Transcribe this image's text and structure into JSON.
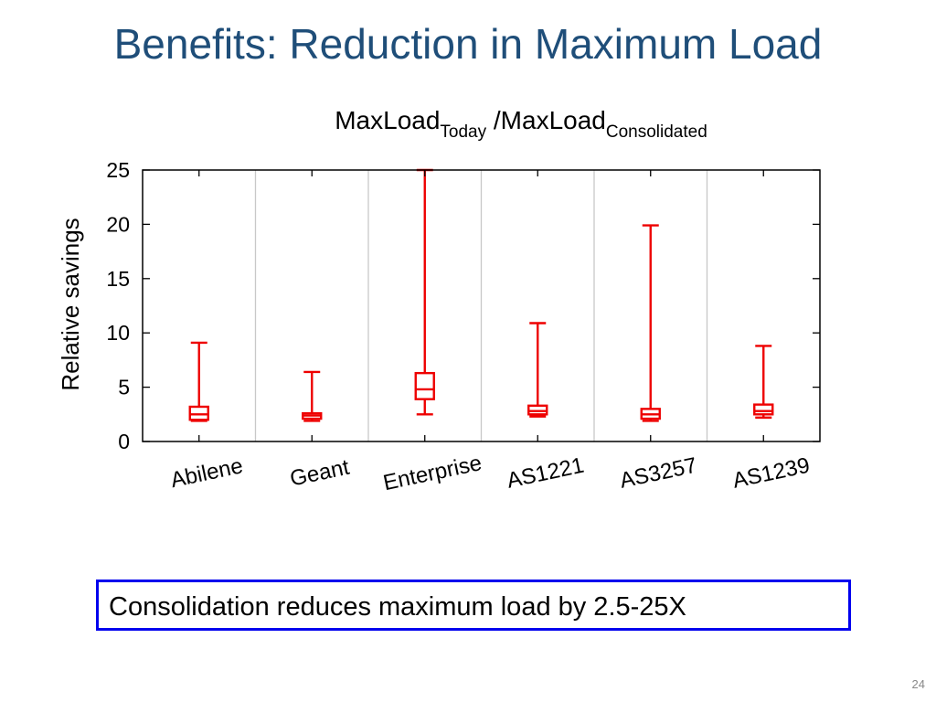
{
  "slide": {
    "title": "Benefits: Reduction in Maximum Load",
    "callout": "Consolidation reduces maximum load by 2.5-25X",
    "page_number": "24"
  },
  "chart_data": {
    "type": "box",
    "title": {
      "main1": "MaxLoad",
      "sub1": "Today",
      "main2": " /MaxLoad",
      "sub2": "Consolidated"
    },
    "ylabel": "Relative savings",
    "xlabel": "",
    "ylim": [
      0,
      25
    ],
    "yticks": [
      "0",
      "5",
      "10",
      "15",
      "20",
      "25"
    ],
    "categories": [
      "Abilene",
      "Geant",
      "Enterprise",
      "AS1221",
      "AS3257",
      "AS1239"
    ],
    "series": [
      {
        "min": 1.9,
        "q1": 2.0,
        "median": 2.5,
        "q3": 3.2,
        "max": 9.1
      },
      {
        "min": 1.9,
        "q1": 2.1,
        "median": 2.4,
        "q3": 2.6,
        "max": 6.4
      },
      {
        "min": 2.5,
        "q1": 3.9,
        "median": 4.8,
        "q3": 6.3,
        "max": 25
      },
      {
        "min": 2.3,
        "q1": 2.5,
        "median": 2.8,
        "q3": 3.3,
        "max": 10.9
      },
      {
        "min": 1.9,
        "q1": 2.1,
        "median": 2.5,
        "q3": 3.0,
        "max": 19.9
      },
      {
        "min": 2.2,
        "q1": 2.5,
        "median": 2.8,
        "q3": 3.4,
        "max": 8.8
      }
    ],
    "grid": "vertical separators between categories",
    "colors": {
      "box": "#ee0000",
      "separator": "#c8c8c8",
      "axis": "#000000"
    }
  }
}
